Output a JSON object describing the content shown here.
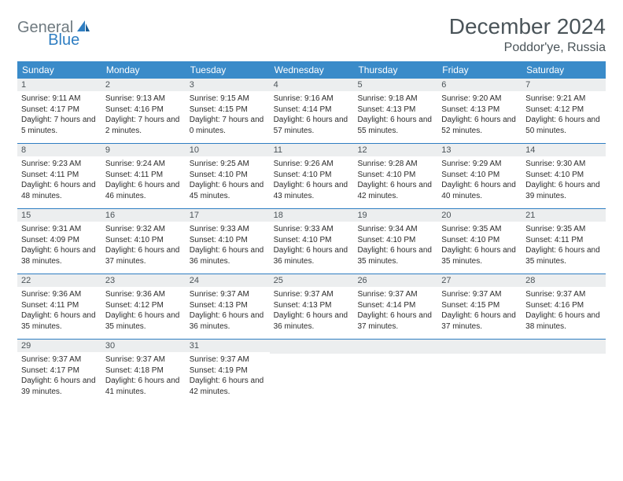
{
  "logo": {
    "text1": "General",
    "text2": "Blue"
  },
  "title": "December 2024",
  "location": "Poddor'ye, Russia",
  "colors": {
    "header_bg": "#3a8bc9",
    "rule": "#2f7ec2",
    "daynum_bg": "#eceeef",
    "text_muted": "#4a5459",
    "logo_gray": "#6f7a80",
    "logo_blue": "#2f7ec2"
  },
  "weekdays": [
    "Sunday",
    "Monday",
    "Tuesday",
    "Wednesday",
    "Thursday",
    "Friday",
    "Saturday"
  ],
  "weeks": [
    [
      {
        "n": "1",
        "sr": "Sunrise: 9:11 AM",
        "ss": "Sunset: 4:17 PM",
        "dl": "Daylight: 7 hours and 5 minutes."
      },
      {
        "n": "2",
        "sr": "Sunrise: 9:13 AM",
        "ss": "Sunset: 4:16 PM",
        "dl": "Daylight: 7 hours and 2 minutes."
      },
      {
        "n": "3",
        "sr": "Sunrise: 9:15 AM",
        "ss": "Sunset: 4:15 PM",
        "dl": "Daylight: 7 hours and 0 minutes."
      },
      {
        "n": "4",
        "sr": "Sunrise: 9:16 AM",
        "ss": "Sunset: 4:14 PM",
        "dl": "Daylight: 6 hours and 57 minutes."
      },
      {
        "n": "5",
        "sr": "Sunrise: 9:18 AM",
        "ss": "Sunset: 4:13 PM",
        "dl": "Daylight: 6 hours and 55 minutes."
      },
      {
        "n": "6",
        "sr": "Sunrise: 9:20 AM",
        "ss": "Sunset: 4:13 PM",
        "dl": "Daylight: 6 hours and 52 minutes."
      },
      {
        "n": "7",
        "sr": "Sunrise: 9:21 AM",
        "ss": "Sunset: 4:12 PM",
        "dl": "Daylight: 6 hours and 50 minutes."
      }
    ],
    [
      {
        "n": "8",
        "sr": "Sunrise: 9:23 AM",
        "ss": "Sunset: 4:11 PM",
        "dl": "Daylight: 6 hours and 48 minutes."
      },
      {
        "n": "9",
        "sr": "Sunrise: 9:24 AM",
        "ss": "Sunset: 4:11 PM",
        "dl": "Daylight: 6 hours and 46 minutes."
      },
      {
        "n": "10",
        "sr": "Sunrise: 9:25 AM",
        "ss": "Sunset: 4:10 PM",
        "dl": "Daylight: 6 hours and 45 minutes."
      },
      {
        "n": "11",
        "sr": "Sunrise: 9:26 AM",
        "ss": "Sunset: 4:10 PM",
        "dl": "Daylight: 6 hours and 43 minutes."
      },
      {
        "n": "12",
        "sr": "Sunrise: 9:28 AM",
        "ss": "Sunset: 4:10 PM",
        "dl": "Daylight: 6 hours and 42 minutes."
      },
      {
        "n": "13",
        "sr": "Sunrise: 9:29 AM",
        "ss": "Sunset: 4:10 PM",
        "dl": "Daylight: 6 hours and 40 minutes."
      },
      {
        "n": "14",
        "sr": "Sunrise: 9:30 AM",
        "ss": "Sunset: 4:10 PM",
        "dl": "Daylight: 6 hours and 39 minutes."
      }
    ],
    [
      {
        "n": "15",
        "sr": "Sunrise: 9:31 AM",
        "ss": "Sunset: 4:09 PM",
        "dl": "Daylight: 6 hours and 38 minutes."
      },
      {
        "n": "16",
        "sr": "Sunrise: 9:32 AM",
        "ss": "Sunset: 4:10 PM",
        "dl": "Daylight: 6 hours and 37 minutes."
      },
      {
        "n": "17",
        "sr": "Sunrise: 9:33 AM",
        "ss": "Sunset: 4:10 PM",
        "dl": "Daylight: 6 hours and 36 minutes."
      },
      {
        "n": "18",
        "sr": "Sunrise: 9:33 AM",
        "ss": "Sunset: 4:10 PM",
        "dl": "Daylight: 6 hours and 36 minutes."
      },
      {
        "n": "19",
        "sr": "Sunrise: 9:34 AM",
        "ss": "Sunset: 4:10 PM",
        "dl": "Daylight: 6 hours and 35 minutes."
      },
      {
        "n": "20",
        "sr": "Sunrise: 9:35 AM",
        "ss": "Sunset: 4:10 PM",
        "dl": "Daylight: 6 hours and 35 minutes."
      },
      {
        "n": "21",
        "sr": "Sunrise: 9:35 AM",
        "ss": "Sunset: 4:11 PM",
        "dl": "Daylight: 6 hours and 35 minutes."
      }
    ],
    [
      {
        "n": "22",
        "sr": "Sunrise: 9:36 AM",
        "ss": "Sunset: 4:11 PM",
        "dl": "Daylight: 6 hours and 35 minutes."
      },
      {
        "n": "23",
        "sr": "Sunrise: 9:36 AM",
        "ss": "Sunset: 4:12 PM",
        "dl": "Daylight: 6 hours and 35 minutes."
      },
      {
        "n": "24",
        "sr": "Sunrise: 9:37 AM",
        "ss": "Sunset: 4:13 PM",
        "dl": "Daylight: 6 hours and 36 minutes."
      },
      {
        "n": "25",
        "sr": "Sunrise: 9:37 AM",
        "ss": "Sunset: 4:13 PM",
        "dl": "Daylight: 6 hours and 36 minutes."
      },
      {
        "n": "26",
        "sr": "Sunrise: 9:37 AM",
        "ss": "Sunset: 4:14 PM",
        "dl": "Daylight: 6 hours and 37 minutes."
      },
      {
        "n": "27",
        "sr": "Sunrise: 9:37 AM",
        "ss": "Sunset: 4:15 PM",
        "dl": "Daylight: 6 hours and 37 minutes."
      },
      {
        "n": "28",
        "sr": "Sunrise: 9:37 AM",
        "ss": "Sunset: 4:16 PM",
        "dl": "Daylight: 6 hours and 38 minutes."
      }
    ],
    [
      {
        "n": "29",
        "sr": "Sunrise: 9:37 AM",
        "ss": "Sunset: 4:17 PM",
        "dl": "Daylight: 6 hours and 39 minutes."
      },
      {
        "n": "30",
        "sr": "Sunrise: 9:37 AM",
        "ss": "Sunset: 4:18 PM",
        "dl": "Daylight: 6 hours and 41 minutes."
      },
      {
        "n": "31",
        "sr": "Sunrise: 9:37 AM",
        "ss": "Sunset: 4:19 PM",
        "dl": "Daylight: 6 hours and 42 minutes."
      },
      {
        "empty": true
      },
      {
        "empty": true
      },
      {
        "empty": true
      },
      {
        "empty": true
      }
    ]
  ]
}
